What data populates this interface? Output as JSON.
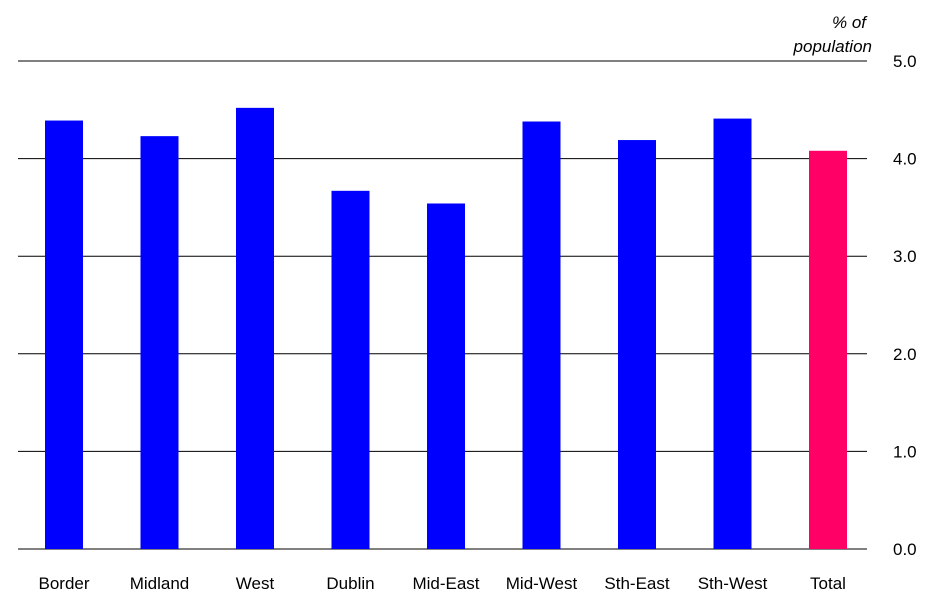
{
  "chart_data": {
    "type": "bar",
    "title": "",
    "xlabel": "",
    "ylabel": "% of population",
    "ylabel_lines": [
      "% of",
      "population"
    ],
    "y_axis_side": "right",
    "ylim": [
      0,
      5
    ],
    "yticks": [
      0,
      1,
      2,
      3,
      4,
      5
    ],
    "ytick_labels": [
      "0.0",
      "1.0",
      "2.0",
      "3.0",
      "4.0",
      "5.0"
    ],
    "grid": true,
    "legend": "none",
    "categories": [
      "Border",
      "Midland",
      "West",
      "Dublin",
      "Mid-East",
      "Mid-West",
      "Sth-East",
      "Sth-West",
      "Total"
    ],
    "values": [
      4.39,
      4.23,
      4.52,
      3.67,
      3.54,
      4.38,
      4.19,
      4.41,
      4.08
    ],
    "colors": {
      "region": "#0000ff",
      "total": "#ff0066",
      "grid": "#000000"
    },
    "highlight_category": "Total"
  }
}
